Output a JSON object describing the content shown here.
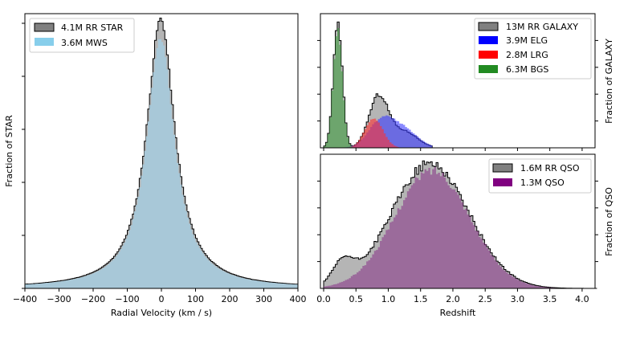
{
  "chart_data": [
    {
      "type": "histogram",
      "panel": "left",
      "xlabel": "Radial Velocity (km / s)",
      "ylabel": "Fraction of STAR",
      "xlim": [
        -400,
        400
      ],
      "xticks": [
        -400,
        -300,
        -200,
        -100,
        0,
        100,
        200,
        300,
        400
      ],
      "xtick_labels": [
        "−400",
        "−300",
        "−200",
        "−100",
        "0",
        "100",
        "200",
        "300",
        "400"
      ],
      "ylim": [
        0,
        1.02
      ],
      "legend_position": "top-left",
      "series": [
        {
          "name": "4.1M RR STAR",
          "color": "#808080",
          "shape": "lorentzian",
          "center": -2,
          "width": 50,
          "peak": 1.0,
          "floor": 0.0
        },
        {
          "name": "3.6M MWS",
          "color": "#87CEEB",
          "shape": "lorentzian",
          "center": -2,
          "width": 50,
          "peak": 0.93,
          "floor": 0.0
        }
      ]
    },
    {
      "type": "histogram",
      "panel": "top-right",
      "xlabel": "",
      "ylabel": "Fraction of GALAXY",
      "xlim": [
        -0.05,
        4.2
      ],
      "ylim": [
        0,
        1.0
      ],
      "legend_position": "top-right",
      "series": [
        {
          "name": "13M RR GALAXY",
          "color": "#808080",
          "components": [
            {
              "center": 0.22,
              "sigma": 0.07,
              "amp": 0.92
            },
            {
              "center": 0.85,
              "sigma": 0.15,
              "amp": 0.38
            },
            {
              "center": 1.25,
              "sigma": 0.2,
              "amp": 0.12
            }
          ],
          "cut": 1.68
        },
        {
          "name": "3.9M ELG",
          "color": "#0000FF",
          "components": [
            {
              "center": 0.9,
              "sigma": 0.2,
              "amp": 0.2
            },
            {
              "center": 1.25,
              "sigma": 0.22,
              "amp": 0.12
            }
          ],
          "cut": 1.68
        },
        {
          "name": "2.8M LRG",
          "color": "#FF0000",
          "components": [
            {
              "center": 0.78,
              "sigma": 0.14,
              "amp": 0.22
            }
          ],
          "cut": 1.15
        },
        {
          "name": "6.3M BGS",
          "color": "#228B22",
          "components": [
            {
              "center": 0.22,
              "sigma": 0.07,
              "amp": 0.88
            }
          ],
          "cut": 0.62
        }
      ]
    },
    {
      "type": "histogram",
      "panel": "bottom-right",
      "xlabel": "Redshift",
      "ylabel": "Fraction of QSO",
      "xlim": [
        -0.05,
        4.2
      ],
      "xticks": [
        0.0,
        0.5,
        1.0,
        1.5,
        2.0,
        2.5,
        3.0,
        3.5,
        4.0
      ],
      "xtick_labels": [
        "0.0",
        "0.5",
        "1.0",
        "1.5",
        "2.0",
        "2.5",
        "3.0",
        "3.5",
        "4.0"
      ],
      "ylim": [
        0,
        1.0
      ],
      "legend_position": "top-right",
      "series": [
        {
          "name": "1.6M RR QSO",
          "color": "#808080",
          "components": [
            {
              "center": 1.65,
              "sigma": 0.6,
              "amp": 0.93
            },
            {
              "center": 0.3,
              "sigma": 0.16,
              "amp": 0.16
            }
          ]
        },
        {
          "name": "1.3M QSO",
          "color": "#800080",
          "components": [
            {
              "center": 1.68,
              "sigma": 0.58,
              "amp": 0.88
            }
          ]
        }
      ]
    }
  ]
}
